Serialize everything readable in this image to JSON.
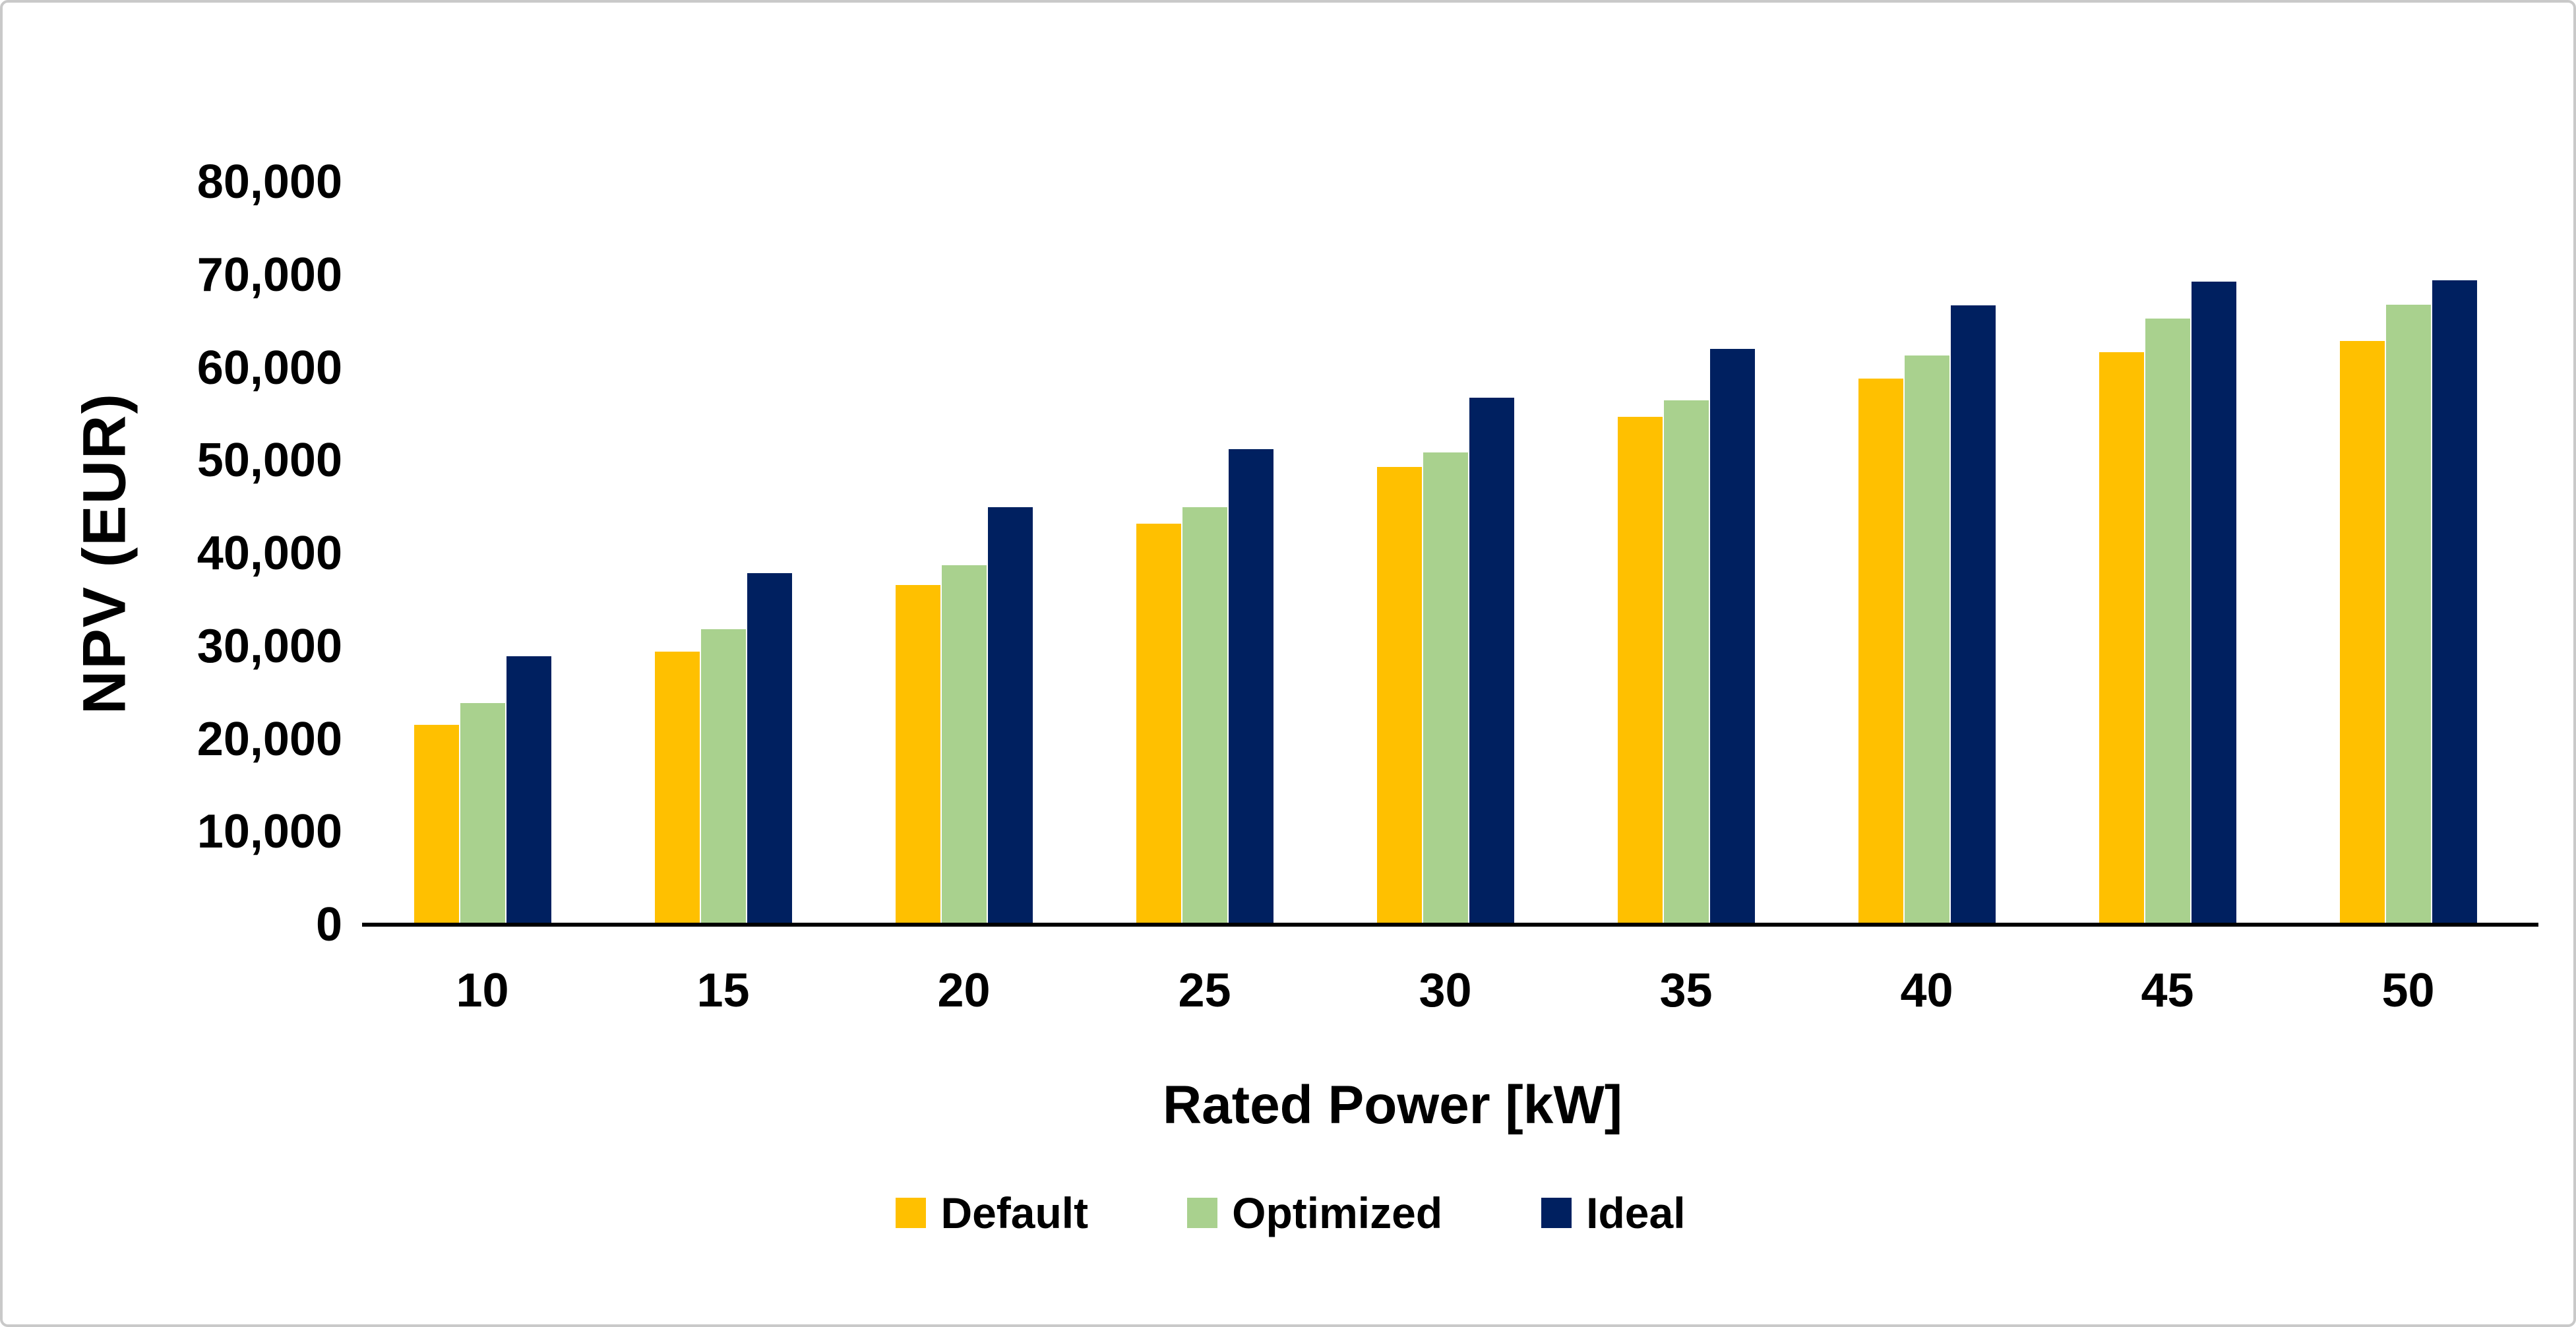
{
  "chart_data": {
    "type": "bar",
    "title": "",
    "xlabel": "Rated Power [kW]",
    "ylabel": "NPV  (EUR)",
    "ylim": [
      0,
      80000
    ],
    "ytick_step": 10000,
    "y_tick_labels": [
      "0",
      "10,000",
      "20,000",
      "30,000",
      "40,000",
      "50,000",
      "60,000",
      "70,000",
      "80,000"
    ],
    "categories": [
      "10",
      "15",
      "20",
      "25",
      "30",
      "35",
      "40",
      "45",
      "50"
    ],
    "series": [
      {
        "name": "Default",
        "color": "#FFC000",
        "values": [
          21500,
          29400,
          36600,
          43200,
          49300,
          54700,
          58800,
          61700,
          62900
        ]
      },
      {
        "name": "Optimized",
        "color": "#A9D18E",
        "values": [
          23900,
          31800,
          38700,
          45000,
          50900,
          56500,
          61300,
          65300,
          66800
        ]
      },
      {
        "name": "Ideal",
        "color": "#002060",
        "values": [
          28900,
          37900,
          45000,
          51200,
          56800,
          62000,
          66700,
          69300,
          69400
        ]
      }
    ],
    "legend_position": "bottom",
    "grid": false,
    "axis_color": "#000000",
    "frame_border_color": "#C9C9C9",
    "background_color": "#FFFFFF"
  }
}
